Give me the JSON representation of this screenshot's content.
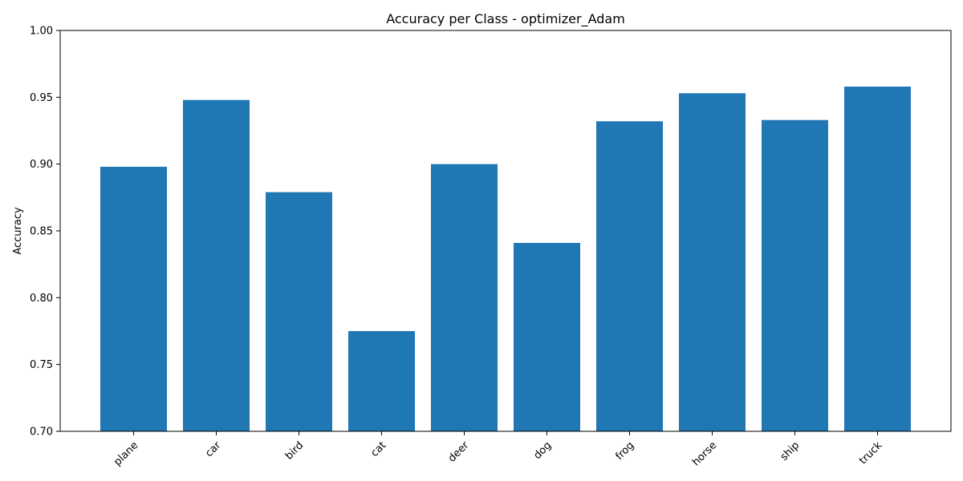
{
  "chart_data": {
    "type": "bar",
    "title": "Accuracy per Class - optimizer_Adam",
    "xlabel": "",
    "ylabel": "Accuracy",
    "categories": [
      "plane",
      "car",
      "bird",
      "cat",
      "deer",
      "dog",
      "frog",
      "horse",
      "ship",
      "truck"
    ],
    "values": [
      0.898,
      0.948,
      0.879,
      0.775,
      0.9,
      0.841,
      0.932,
      0.953,
      0.933,
      0.958
    ],
    "ylim": [
      0.7,
      1.0
    ],
    "yticks": [
      0.7,
      0.75,
      0.8,
      0.85,
      0.9,
      0.95,
      1.0
    ],
    "ytick_labels": [
      "0.70",
      "0.75",
      "0.80",
      "0.85",
      "0.90",
      "0.95",
      "1.00"
    ],
    "bar_color": "#1f77b4",
    "grid": false,
    "legend": null
  }
}
